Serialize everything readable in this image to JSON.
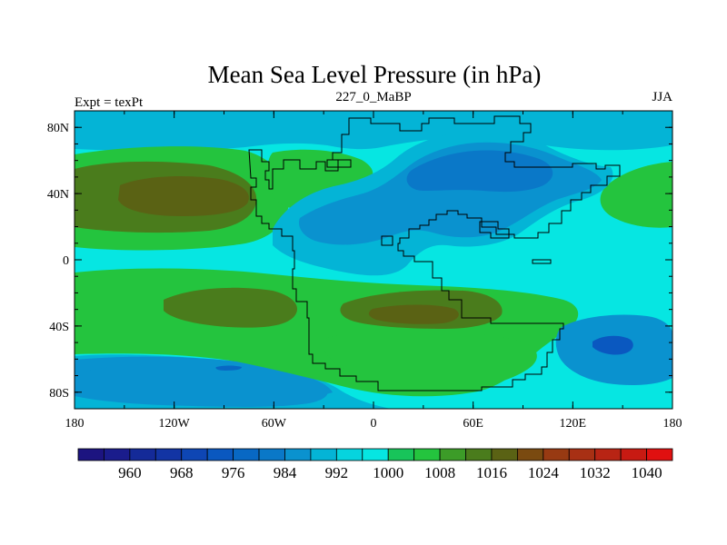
{
  "chart_data": {
    "type": "heatmap",
    "title": "Mean Sea Level Pressure (in hPa)",
    "subtitle_left": "Expt = texPt",
    "subtitle_center": "227_0_MaBP",
    "subtitle_right": "JJA",
    "x_ticks": [
      {
        "value": -180,
        "label": "180"
      },
      {
        "value": -120,
        "label": "120W"
      },
      {
        "value": -60,
        "label": "60W"
      },
      {
        "value": 0,
        "label": "0"
      },
      {
        "value": 60,
        "label": "60E"
      },
      {
        "value": 120,
        "label": "120E"
      },
      {
        "value": 180,
        "label": "180"
      }
    ],
    "y_ticks": [
      {
        "value": 80,
        "label": "80N"
      },
      {
        "value": 40,
        "label": "40N"
      },
      {
        "value": 0,
        "label": "0"
      },
      {
        "value": -40,
        "label": "40S"
      },
      {
        "value": -80,
        "label": "80S"
      }
    ],
    "xlim": [
      -180,
      180
    ],
    "ylim": [
      -90,
      90
    ],
    "levels": [
      956,
      960,
      964,
      968,
      972,
      976,
      980,
      984,
      988,
      992,
      996,
      1000,
      1004,
      1008,
      1012,
      1016,
      1020,
      1024,
      1028,
      1032,
      1036,
      1040,
      1044
    ],
    "colorbar_labels": [
      {
        "value": 960,
        "label": "960"
      },
      {
        "value": 968,
        "label": "968"
      },
      {
        "value": 976,
        "label": "976"
      },
      {
        "value": 984,
        "label": "984"
      },
      {
        "value": 992,
        "label": "992"
      },
      {
        "value": 1000,
        "label": "1000"
      },
      {
        "value": 1008,
        "label": "1008"
      },
      {
        "value": 1016,
        "label": "1016"
      },
      {
        "value": 1024,
        "label": "1024"
      },
      {
        "value": 1032,
        "label": "1032"
      },
      {
        "value": 1040,
        "label": "1040"
      }
    ],
    "colors": {
      "c956": "#1c1480",
      "c960": "#1a1c8c",
      "c964": "#142a98",
      "c968": "#1234a4",
      "c972": "#0e46b4",
      "c976": "#0a58c0",
      "c980": "#0868c4",
      "c984": "#0a78c8",
      "c988": "#0a92cf",
      "c992": "#04b4d6",
      "c996": "#06d4de",
      "c1000": "#06e6e2",
      "c1004": "#18c45a",
      "c1008": "#24c43e",
      "c1012": "#3c9c28",
      "c1016": "#4a7c1c",
      "c1020": "#5a6214",
      "c1024": "#7a4a10",
      "c1028": "#983a12",
      "c1032": "#a83014",
      "c1036": "#b82414",
      "c1040": "#c81a12",
      "c1044": "#e01010"
    },
    "regions": [
      {
        "name": "background",
        "level": 1000
      },
      {
        "name": "north-polar-band",
        "level": 992
      },
      {
        "name": "south-polar-band-west",
        "level": 992
      },
      {
        "name": "south-polar-low",
        "level": 988
      },
      {
        "name": "north-pacific-high",
        "level": 1008
      },
      {
        "name": "north-pacific-high-core",
        "level": 1016
      },
      {
        "name": "north-pacific-high-center",
        "level": 1020
      },
      {
        "name": "north-atlantic-high",
        "level": 1008
      },
      {
        "name": "north-east-pacific-high",
        "level": 1008
      },
      {
        "name": "pangea-north-low",
        "level": 992
      },
      {
        "name": "pangea-north-low-core",
        "level": 988
      },
      {
        "name": "pangea-north-low-center",
        "level": 984
      },
      {
        "name": "south-subtropical-belt",
        "level": 1008
      },
      {
        "name": "south-subtropical-high-west",
        "level": 1016
      },
      {
        "name": "south-subtropical-high-east",
        "level": 1016
      },
      {
        "name": "south-subtropical-high-center",
        "level": 1020
      },
      {
        "name": "southern-gondwana-green",
        "level": 1008
      },
      {
        "name": "australia-low",
        "level": 988
      },
      {
        "name": "australia-low-core",
        "level": 976
      },
      {
        "name": "south-pacific-low",
        "level": 988
      },
      {
        "name": "south-pacific-low-core",
        "level": 980
      }
    ]
  }
}
